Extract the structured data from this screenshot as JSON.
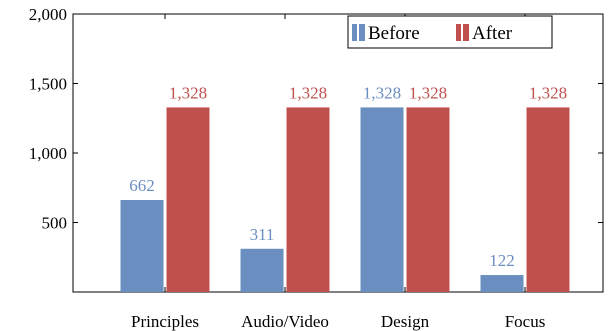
{
  "chart_data": {
    "type": "bar",
    "categories": [
      "Principles",
      "Audio/Video",
      "Design",
      "Focus"
    ],
    "series": [
      {
        "name": "Before",
        "values": [
          662,
          311,
          1328,
          122
        ],
        "color": "#6b8ec0",
        "labels": [
          "662",
          "311",
          "1,328",
          "122"
        ]
      },
      {
        "name": "After",
        "values": [
          1328,
          1328,
          1328,
          1328
        ],
        "color": "#c0504d",
        "labels": [
          "1,328",
          "1,328",
          "1,328",
          "1,328"
        ]
      }
    ],
    "ylim": [
      0,
      2000
    ],
    "yticks": [
      500,
      1000,
      1500,
      2000
    ],
    "ytick_labels": [
      "500",
      "1,000",
      "1,500",
      "2,000"
    ],
    "legend_position": "top-right",
    "grid": false
  }
}
